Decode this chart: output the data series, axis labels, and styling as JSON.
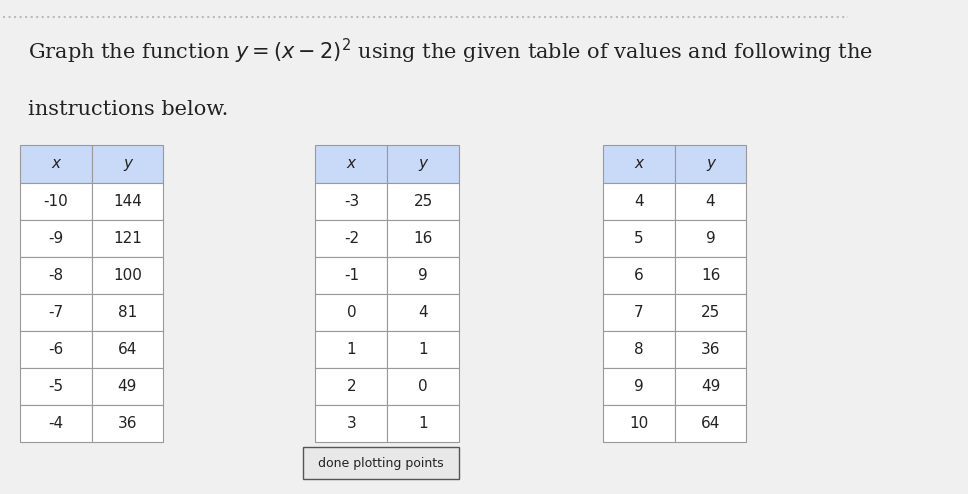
{
  "title_line1": "Graph the function $y = (x - 2)^2$ using the given table of values and following the",
  "title_line2": "instructions below.",
  "title_fontsize": 15,
  "background_color": "#f0f0f0",
  "table1": {
    "headers": [
      "x",
      "y"
    ],
    "rows": [
      [
        "-10",
        "144"
      ],
      [
        "-9",
        "121"
      ],
      [
        "-8",
        "100"
      ],
      [
        "-7",
        "81"
      ],
      [
        "-6",
        "64"
      ],
      [
        "-5",
        "49"
      ],
      [
        "-4",
        "36"
      ]
    ]
  },
  "table2": {
    "headers": [
      "x",
      "y"
    ],
    "rows": [
      [
        "-3",
        "25"
      ],
      [
        "-2",
        "16"
      ],
      [
        "-1",
        "9"
      ],
      [
        "0",
        "4"
      ],
      [
        "1",
        "1"
      ],
      [
        "2",
        "0"
      ],
      [
        "3",
        "1"
      ]
    ]
  },
  "table3": {
    "headers": [
      "x",
      "y"
    ],
    "rows": [
      [
        "4",
        "4"
      ],
      [
        "5",
        "9"
      ],
      [
        "6",
        "16"
      ],
      [
        "7",
        "25"
      ],
      [
        "8",
        "36"
      ],
      [
        "9",
        "49"
      ],
      [
        "10",
        "64"
      ]
    ]
  },
  "button_text": "done plotting points",
  "header_color": "#c9daf8",
  "cell_color": "#ffffff",
  "border_color": "#999999",
  "text_color": "#222222",
  "dotted_line_color": "#bbbbbb"
}
